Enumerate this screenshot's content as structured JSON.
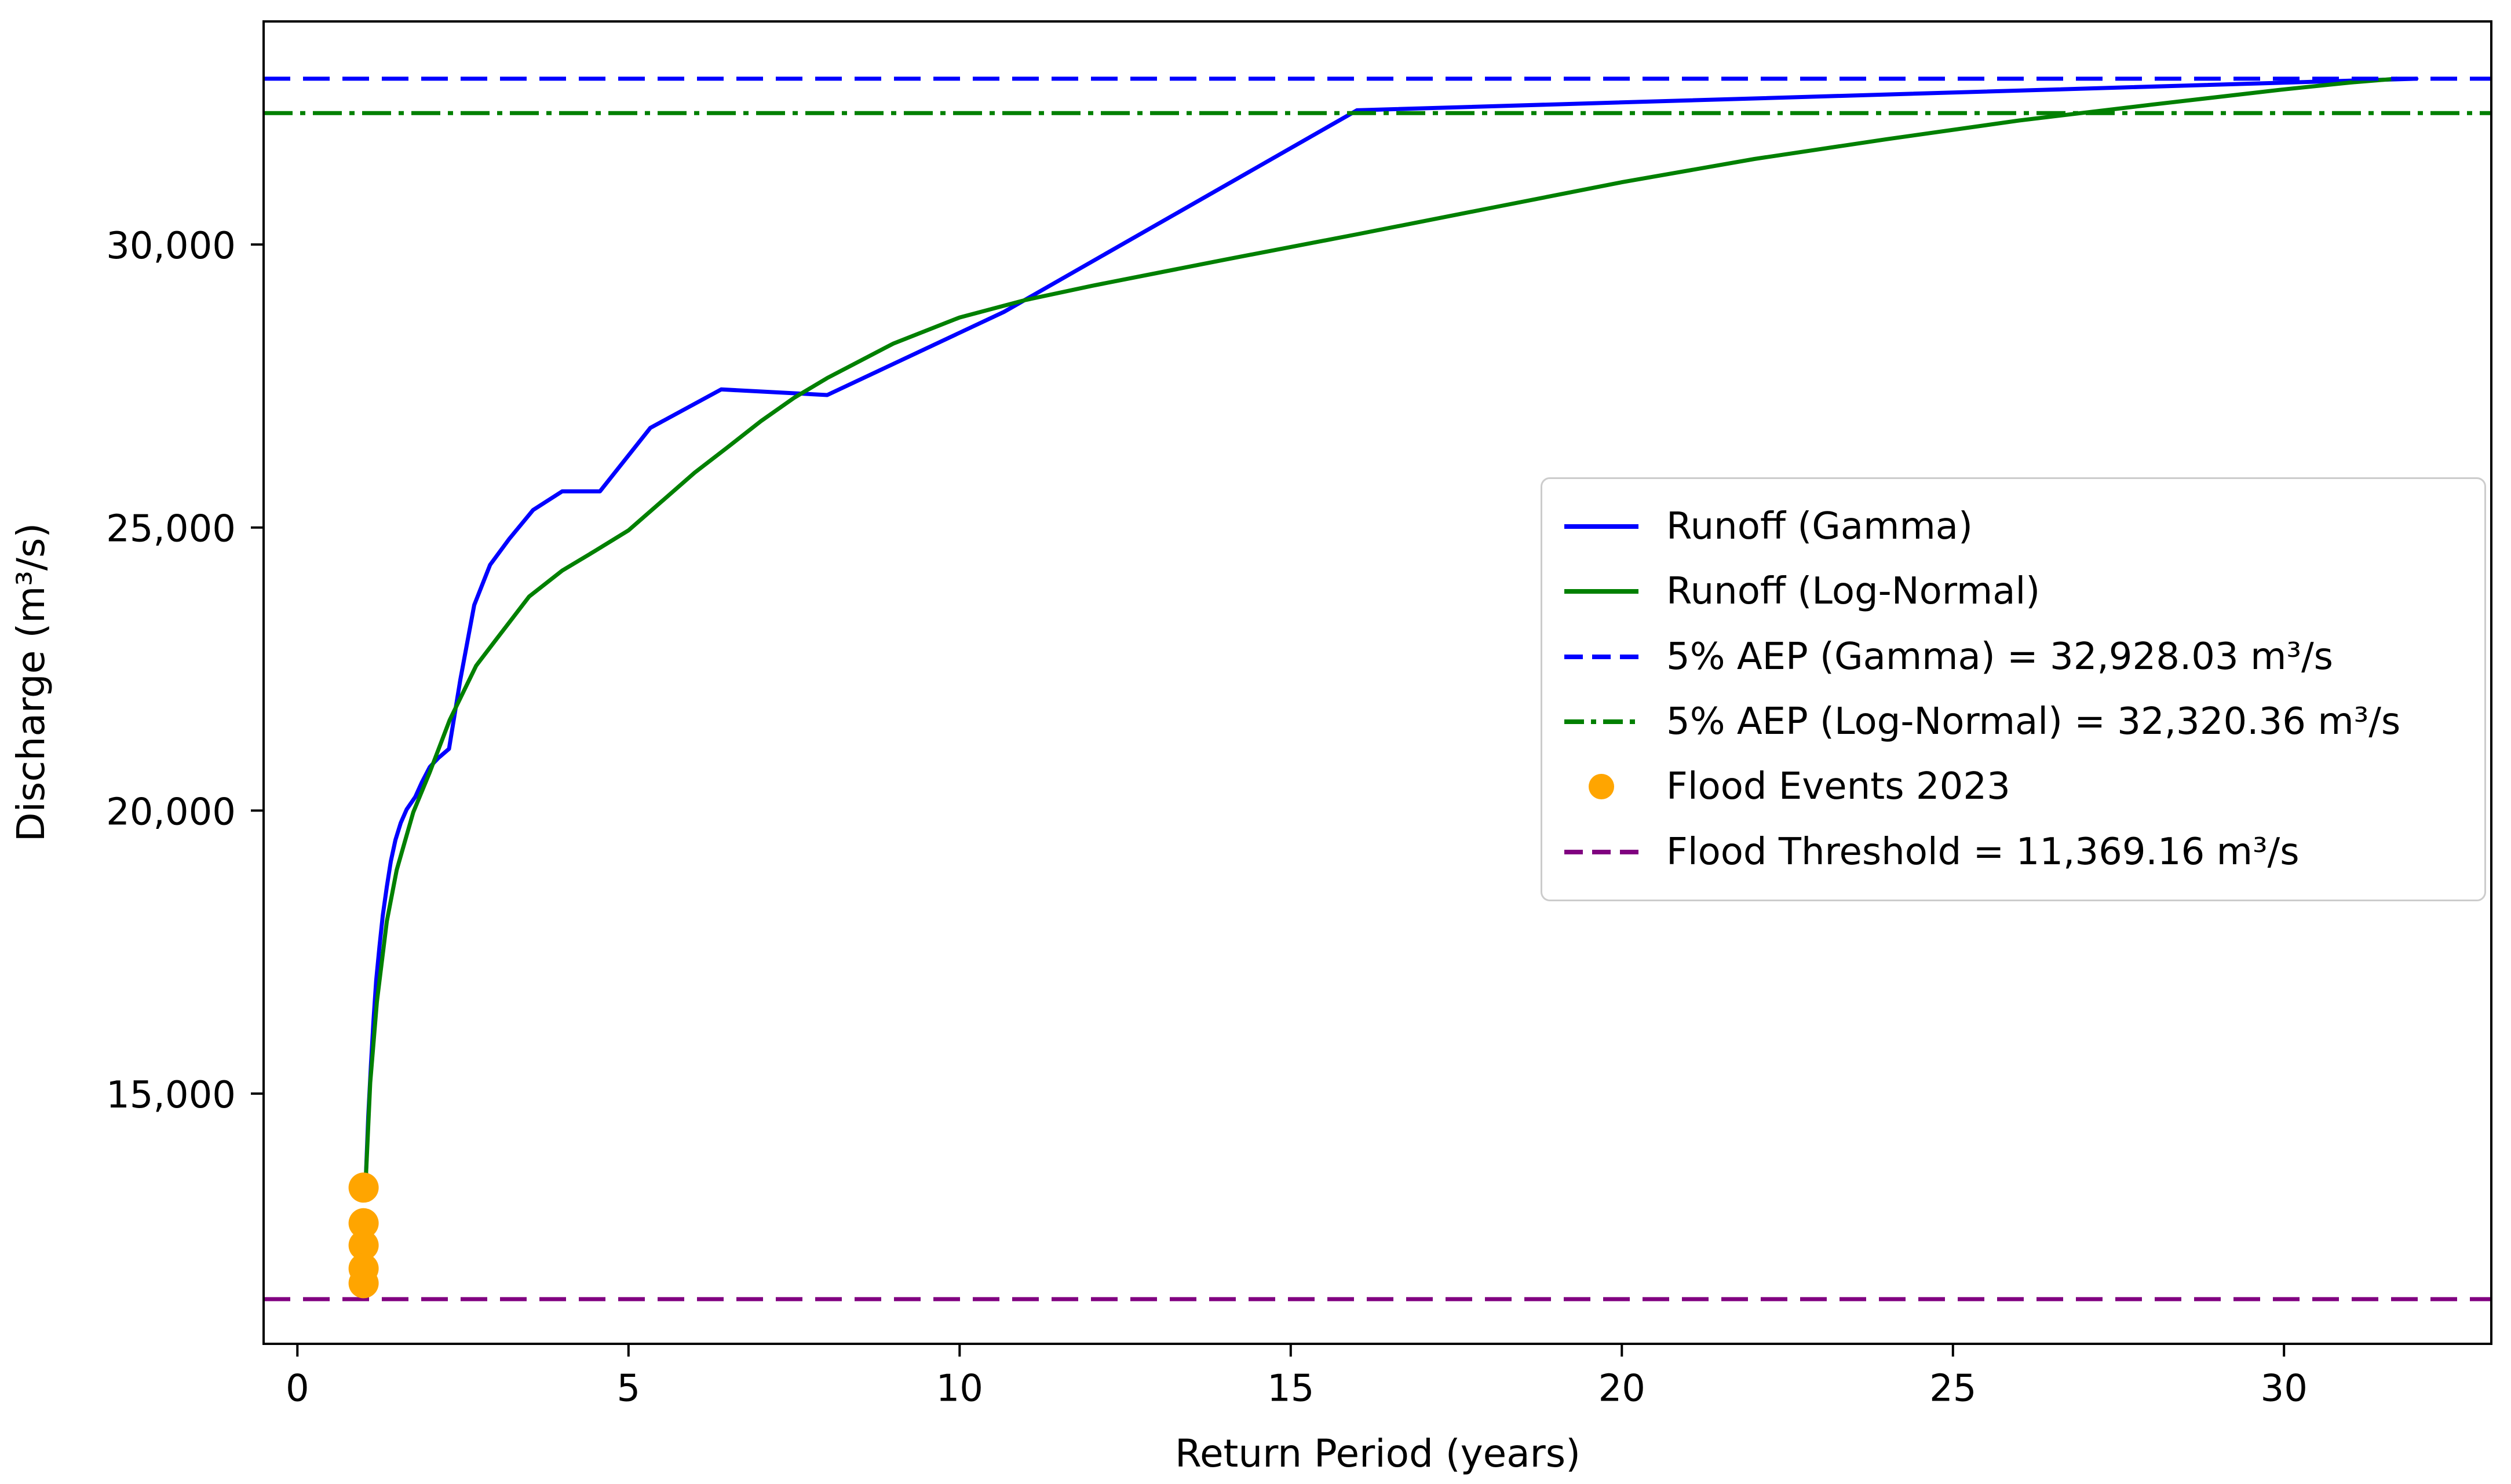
{
  "chart_data": {
    "type": "line",
    "title": "",
    "xlabel": "Return Period (years)",
    "ylabel": "Discharge (m³/s)",
    "xlim": [
      -0.51,
      33.13
    ],
    "ylim": [
      10580,
      33940
    ],
    "grid": false,
    "legend_position": "center right",
    "x_ticks": {
      "values": [
        0,
        5,
        10,
        15,
        20,
        25,
        30
      ],
      "labels": [
        "0",
        "5",
        "10",
        "15",
        "20",
        "25",
        "30"
      ]
    },
    "y_ticks": {
      "values": [
        15000,
        20000,
        25000,
        30000
      ],
      "labels": [
        "15,000",
        "20,000",
        "25,000",
        "30,000"
      ]
    },
    "axis_color": "#000000",
    "text_color": "#000000",
    "series": [
      {
        "name": "Runoff (Gamma)",
        "color": "#0000ff",
        "line_style": "solid",
        "points": [
          [
            1.03,
            13400
          ],
          [
            1.07,
            14600
          ],
          [
            1.11,
            15500
          ],
          [
            1.15,
            16300
          ],
          [
            1.19,
            17000
          ],
          [
            1.24,
            17600
          ],
          [
            1.29,
            18150
          ],
          [
            1.35,
            18650
          ],
          [
            1.41,
            19100
          ],
          [
            1.48,
            19480
          ],
          [
            1.56,
            19780
          ],
          [
            1.65,
            20020
          ],
          [
            1.78,
            20240
          ],
          [
            1.88,
            20500
          ],
          [
            2.0,
            20770
          ],
          [
            2.13,
            20930
          ],
          [
            2.29,
            21090
          ],
          [
            2.46,
            22310
          ],
          [
            2.67,
            23630
          ],
          [
            2.91,
            24340
          ],
          [
            3.2,
            24800
          ],
          [
            3.56,
            25310
          ],
          [
            4.0,
            25640
          ],
          [
            4.57,
            25640
          ],
          [
            5.33,
            26760
          ],
          [
            6.4,
            27440
          ],
          [
            8.0,
            27340
          ],
          [
            10.67,
            28810
          ],
          [
            16.0,
            32370
          ],
          [
            32.0,
            32928
          ]
        ]
      },
      {
        "name": "Runoff (Log-Normal)",
        "color": "#008000",
        "line_style": "solid",
        "points": [
          [
            1.03,
            13400
          ],
          [
            1.1,
            15190
          ],
          [
            1.2,
            16620
          ],
          [
            1.35,
            18040
          ],
          [
            1.5,
            18950
          ],
          [
            1.75,
            19970
          ],
          [
            2.0,
            20680
          ],
          [
            2.3,
            21600
          ],
          [
            2.7,
            22560
          ],
          [
            3.0,
            23020
          ],
          [
            3.5,
            23780
          ],
          [
            4.0,
            24240
          ],
          [
            4.5,
            24590
          ],
          [
            5.0,
            24950
          ],
          [
            5.5,
            25460
          ],
          [
            6.0,
            25970
          ],
          [
            6.5,
            26420
          ],
          [
            7.0,
            26880
          ],
          [
            7.5,
            27290
          ],
          [
            8.0,
            27640
          ],
          [
            9.0,
            28250
          ],
          [
            10.0,
            28710
          ],
          [
            11.0,
            29020
          ],
          [
            12.0,
            29270
          ],
          [
            14.0,
            29730
          ],
          [
            16.0,
            30180
          ],
          [
            18.0,
            30640
          ],
          [
            20.0,
            31100
          ],
          [
            22.0,
            31510
          ],
          [
            24.0,
            31860
          ],
          [
            26.0,
            32190
          ],
          [
            28.0,
            32470
          ],
          [
            30.0,
            32740
          ],
          [
            31.0,
            32860
          ],
          [
            31.7,
            32928
          ]
        ]
      }
    ],
    "reference_lines": [
      {
        "label": "5% AEP (Gamma) = 32,928.03 m³/s",
        "value": 32928.03,
        "color": "#0000ff",
        "line_style": "dashed"
      },
      {
        "label": "5% AEP (Log-Normal) = 32,320.36 m³/s",
        "value": 32320.36,
        "color": "#008000",
        "line_style": "dashdot"
      },
      {
        "label": "Flood Threshold = 11,369.16 m³/s",
        "value": 11369.16,
        "color": "#800080",
        "line_style": "dashed"
      }
    ],
    "scatter": {
      "label": "Flood Events 2023",
      "color": "#ffa500",
      "points": [
        [
          1.0,
          13340
        ],
        [
          1.0,
          12710
        ],
        [
          1.0,
          12320
        ],
        [
          1.0,
          11910
        ],
        [
          1.0,
          11650
        ]
      ]
    }
  }
}
